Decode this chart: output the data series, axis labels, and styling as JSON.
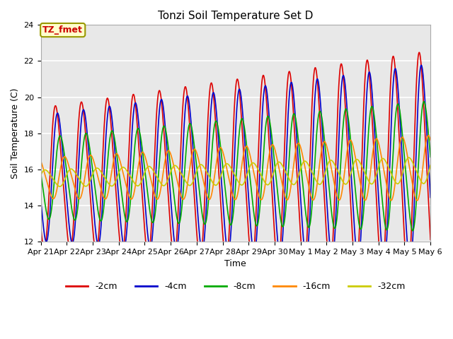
{
  "title": "Tonzi Soil Temperature Set D",
  "xlabel": "Time",
  "ylabel": "Soil Temperature (C)",
  "ylim": [
    12,
    24
  ],
  "yticks": [
    12,
    14,
    16,
    18,
    20,
    22,
    24
  ],
  "annotation": "TZ_fmet",
  "annotation_color": "#cc0000",
  "annotation_bg": "#ffffcc",
  "annotation_border": "#999900",
  "background_color": "#e8e8e8",
  "series": [
    {
      "label": "-2cm",
      "color": "#dd0000",
      "amplitude": 3.8,
      "phase": 0.0,
      "trend": 0.055,
      "damp": 1.0
    },
    {
      "label": "-4cm",
      "color": "#0000cc",
      "amplitude": 3.4,
      "phase": 0.08,
      "trend": 0.05,
      "damp": 0.95
    },
    {
      "label": "-8cm",
      "color": "#00aa00",
      "amplitude": 2.2,
      "phase": 0.18,
      "trend": 0.045,
      "damp": 0.8
    },
    {
      "label": "-16cm",
      "color": "#ff8800",
      "amplitude": 1.1,
      "phase": 0.35,
      "trend": 0.038,
      "damp": 0.6
    },
    {
      "label": "-32cm",
      "color": "#cccc00",
      "amplitude": 0.45,
      "phase": 0.6,
      "trend": 0.03,
      "damp": 0.4
    }
  ],
  "x_start": 0,
  "x_end": 15,
  "n_points": 2000,
  "base_temp": 15.5,
  "xtick_labels": [
    "Apr 21",
    "Apr 22",
    "Apr 23",
    "Apr 24",
    "Apr 25",
    "Apr 26",
    "Apr 27",
    "Apr 28",
    "Apr 29",
    "Apr 30",
    "May 1",
    "May 2",
    "May 3",
    "May 4",
    "May 5",
    "May 6"
  ],
  "xtick_positions": [
    0,
    1,
    2,
    3,
    4,
    5,
    6,
    7,
    8,
    9,
    10,
    11,
    12,
    13,
    14,
    15
  ],
  "line_width": 1.2
}
